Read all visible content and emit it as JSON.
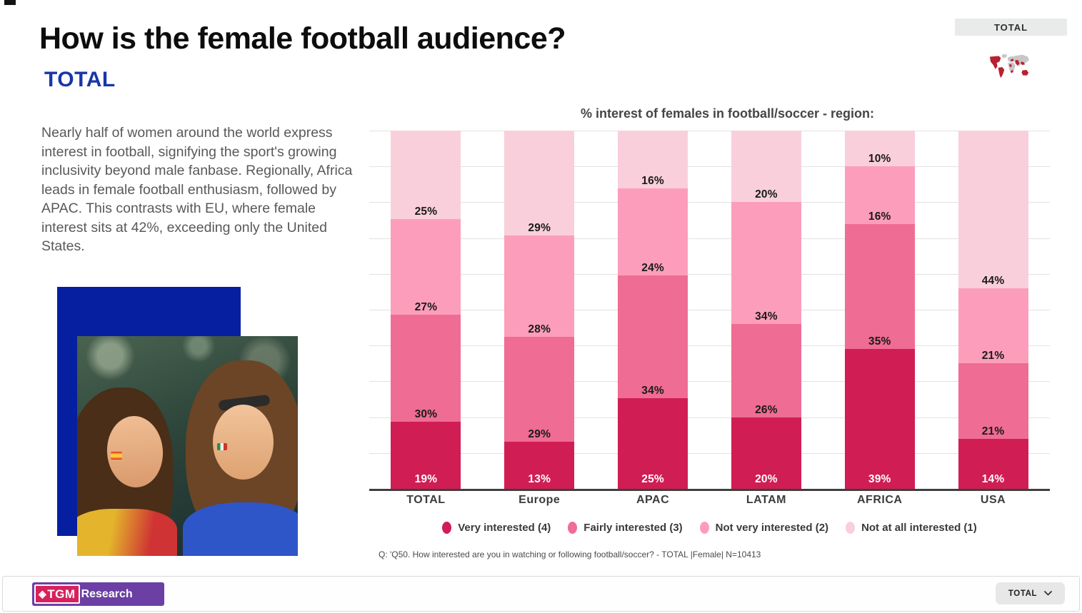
{
  "slide": {
    "title": "How is the female football audience?",
    "subtitle": "TOTAL",
    "description": "Nearly half of women around the world express interest in football, signifying the sport's growing inclusivity beyond male fanbase. Regionally, Africa leads in female football enthusiasm, followed by APAC. This contrasts with EU, where female interest sits at 42%, exceeding only the United States.",
    "accent_color": "#1736A8",
    "panel_color": "#051FA0"
  },
  "header_right": {
    "region_label": "TOTAL"
  },
  "chart_data": {
    "type": "bar",
    "stacked": true,
    "units": "%",
    "title": "% interest of females in football/soccer -  region:",
    "categories": [
      "TOTAL",
      "Europe",
      "APAC",
      "LATAM",
      "AFRICA",
      "USA"
    ],
    "series": [
      {
        "name": "Very interested (4)",
        "color": "#D01D54",
        "label_color": "#FFFFFF",
        "values": [
          19,
          13,
          25,
          20,
          39,
          14
        ]
      },
      {
        "name": "Fairly interested (3)",
        "color": "#EF6C94",
        "label_color": "#1A1A1A",
        "values": [
          30,
          29,
          34,
          26,
          35,
          21
        ]
      },
      {
        "name": "Not very interested (2)",
        "color": "#FC9EBB",
        "label_color": "#1A1A1A",
        "values": [
          27,
          28,
          24,
          34,
          16,
          21
        ]
      },
      {
        "name": "Not at all interested (1)",
        "color": "#F9CFDB",
        "label_color": "#1A1A1A",
        "values": [
          25,
          29,
          16,
          20,
          10,
          44
        ]
      }
    ],
    "ylim": [
      0,
      100
    ],
    "gridline_step": 10,
    "grid": true,
    "legend_position": "bottom",
    "footnote": "Q: 'Q50. How interested are you in watching or following football/soccer? - TOTAL |Female| N=10413"
  },
  "footer": {
    "logo_diamond": "◈",
    "logo_tgm": "TGM",
    "logo_research": "Research",
    "dropdown_label": "TOTAL"
  }
}
